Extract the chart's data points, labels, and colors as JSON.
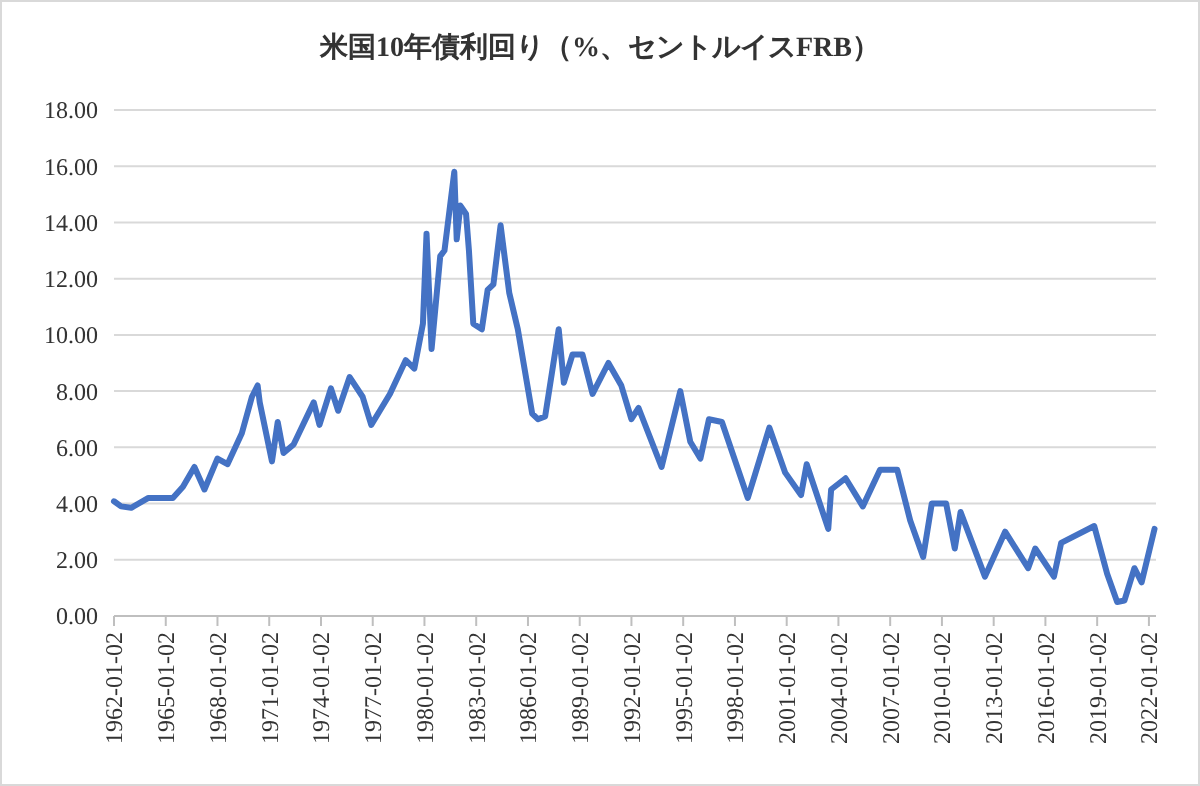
{
  "chart_data": {
    "type": "line",
    "title": "米国10年債利回り（%、セントルイスFRB）",
    "x": [
      "1962-01-02",
      "1962-06-01",
      "1963-01-01",
      "1964-01-01",
      "1965-06-01",
      "1966-01-01",
      "1966-09-01",
      "1967-04-01",
      "1968-01-01",
      "1968-08-01",
      "1969-06-01",
      "1970-01-01",
      "1970-05-01",
      "1970-06-15",
      "1971-03-01",
      "1971-07-01",
      "1971-11-01",
      "1972-06-01",
      "1973-08-01",
      "1973-12-01",
      "1974-08-01",
      "1975-01-01",
      "1975-09-01",
      "1976-06-01",
      "1976-12-01",
      "1977-06-01",
      "1978-01-01",
      "1978-12-01",
      "1979-06-01",
      "1979-12-01",
      "1980-02-15",
      "1980-06-01",
      "1980-12-01",
      "1981-03-01",
      "1981-09-25",
      "1981-11-15",
      "1982-02-01",
      "1982-06-01",
      "1982-08-01",
      "1982-11-01",
      "1983-05-01",
      "1983-09-01",
      "1984-01-01",
      "1984-06-01",
      "1984-12-01",
      "1985-06-01",
      "1986-04-01",
      "1986-08-01",
      "1987-01-01",
      "1987-10-15",
      "1988-02-01",
      "1988-08-01",
      "1989-03-01",
      "1989-10-01",
      "1990-09-01",
      "1991-06-01",
      "1992-01-01",
      "1992-06-01",
      "1993-10-01",
      "1994-11-01",
      "1995-06-01",
      "1996-01-01",
      "1996-07-01",
      "1997-04-01",
      "1998-10-01",
      "1999-01-01",
      "2000-01-01",
      "2000-12-01",
      "2001-11-01",
      "2002-03-01",
      "2003-06-01",
      "2003-08-01",
      "2004-06-01",
      "2005-06-01",
      "2006-06-01",
      "2007-06-01",
      "2008-03-01",
      "2008-12-01",
      "2009-06-01",
      "2010-04-01",
      "2010-10-01",
      "2011-02-01",
      "2012-07-01",
      "2013-09-01",
      "2015-01-01",
      "2015-06-01",
      "2016-07-01",
      "2016-12-01",
      "2018-11-01",
      "2019-08-01",
      "2020-03-01",
      "2020-08-01",
      "2021-03-01",
      "2021-08-01",
      "2022-05-01"
    ],
    "series": [
      {
        "color": "#4472c4",
        "values": [
          4.08,
          3.9,
          3.85,
          4.2,
          4.2,
          4.6,
          5.3,
          4.5,
          5.6,
          5.4,
          6.5,
          7.8,
          8.2,
          7.6,
          5.5,
          6.9,
          5.8,
          6.1,
          7.6,
          6.8,
          8.1,
          7.3,
          8.5,
          7.8,
          6.8,
          7.3,
          7.9,
          9.1,
          8.8,
          10.4,
          13.6,
          9.5,
          12.8,
          13.0,
          15.8,
          13.4,
          14.6,
          14.3,
          13.0,
          10.4,
          10.2,
          11.6,
          11.8,
          13.9,
          11.5,
          10.2,
          7.2,
          7.0,
          7.1,
          10.2,
          8.3,
          9.3,
          9.3,
          7.9,
          9.0,
          8.2,
          7.0,
          7.4,
          5.3,
          8.0,
          6.2,
          5.6,
          7.0,
          6.9,
          4.2,
          4.7,
          6.7,
          5.1,
          4.3,
          5.4,
          3.1,
          4.5,
          4.9,
          3.9,
          5.2,
          5.2,
          3.4,
          2.1,
          4.0,
          4.0,
          2.4,
          3.7,
          1.4,
          3.0,
          1.7,
          2.4,
          1.4,
          2.6,
          3.2,
          1.5,
          0.5,
          0.55,
          1.7,
          1.2,
          3.1
        ]
      }
    ],
    "xlim": [
      "1962-01-02",
      "2022-06-01"
    ],
    "xticks": [
      "1962-01-02",
      "1965-01-02",
      "1968-01-02",
      "1971-01-02",
      "1974-01-02",
      "1977-01-02",
      "1980-01-02",
      "1983-01-02",
      "1986-01-02",
      "1989-01-02",
      "1992-01-02",
      "1995-01-02",
      "1998-01-02",
      "2001-01-02",
      "2004-01-02",
      "2007-01-02",
      "2010-01-02",
      "2013-01-02",
      "2016-01-02",
      "2019-01-02",
      "2022-01-02"
    ],
    "ylim": [
      0,
      18
    ],
    "yticks": [
      {
        "value": 0,
        "label": "0.00"
      },
      {
        "value": 2,
        "label": "2.00"
      },
      {
        "value": 4,
        "label": "4.00"
      },
      {
        "value": 6,
        "label": "6.00"
      },
      {
        "value": 8,
        "label": "8.00"
      },
      {
        "value": 10,
        "label": "10.00"
      },
      {
        "value": 12,
        "label": "12.00"
      },
      {
        "value": 14,
        "label": "14.00"
      },
      {
        "value": 16,
        "label": "16.00"
      },
      {
        "value": 18,
        "label": "18.00"
      }
    ],
    "grid": "y",
    "line_style": "solid",
    "marker": "none"
  }
}
